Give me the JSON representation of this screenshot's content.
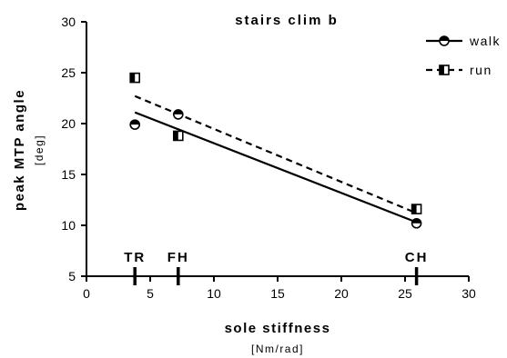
{
  "chart_data": {
    "type": "scatter",
    "title": "stairs clim b",
    "xlabel": "sole stiffness",
    "xunit": "[Nm/rad]",
    "ylabel": "peak MTP angle",
    "yunit": "[deg]",
    "xlim": [
      0,
      30
    ],
    "ylim": [
      5,
      30
    ],
    "x_ticks": [
      0,
      5,
      10,
      15,
      20,
      25,
      30
    ],
    "y_ticks": [
      5,
      10,
      15,
      20,
      25,
      30
    ],
    "grid": false,
    "legend_position": "top-right",
    "series": [
      {
        "name": "walk",
        "marker": "circle-half-filled",
        "line_style": "solid",
        "points": [
          {
            "x": 3.8,
            "y": 19.9
          },
          {
            "x": 7.2,
            "y": 20.9
          },
          {
            "x": 25.9,
            "y": 10.2
          }
        ],
        "fit": [
          {
            "x": 3.8,
            "y": 21.1
          },
          {
            "x": 25.9,
            "y": 10.3
          }
        ]
      },
      {
        "name": "run",
        "marker": "square-half-filled",
        "line_style": "dashed",
        "points": [
          {
            "x": 3.8,
            "y": 24.5
          },
          {
            "x": 7.2,
            "y": 18.8
          },
          {
            "x": 25.9,
            "y": 11.6
          }
        ],
        "fit": [
          {
            "x": 3.8,
            "y": 22.7
          },
          {
            "x": 25.9,
            "y": 11.2
          }
        ]
      }
    ],
    "annotations": [
      {
        "text": "TR",
        "x": 3.8
      },
      {
        "text": "FH",
        "x": 7.2
      },
      {
        "text": "CH",
        "x": 25.9
      }
    ]
  }
}
